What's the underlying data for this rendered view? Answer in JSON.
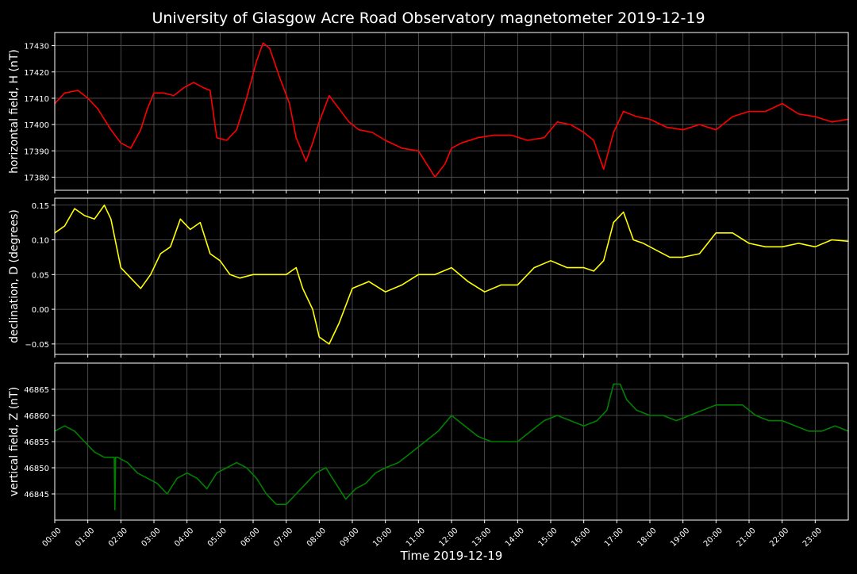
{
  "title": "University of Glasgow Acre Road Observatory magnetometer 2019-12-19",
  "xlabel": "Time 2019-12-19",
  "colors": {
    "background": "#000000",
    "axes": "#ffffff",
    "grid": "#5a5a5a",
    "H": "#ff0000",
    "D": "#ffff00",
    "Z": "#008000"
  },
  "chart_data": [
    {
      "type": "line",
      "ylabel": "horizontal field, H (nT)",
      "series_color": "#ff0000",
      "grid": true,
      "xlim": [
        0,
        24
      ],
      "ylim": [
        17375,
        17435
      ],
      "yticks": [
        17380,
        17390,
        17400,
        17410,
        17420,
        17430
      ],
      "ytick_labels": [
        "17380",
        "17390",
        "17400",
        "17410",
        "17420",
        "17430"
      ],
      "x": [
        0,
        0.3,
        0.7,
        1.0,
        1.3,
        1.7,
        2.0,
        2.3,
        2.6,
        2.8,
        3.0,
        3.3,
        3.6,
        3.9,
        4.2,
        4.5,
        4.7,
        4.9,
        5.2,
        5.5,
        5.8,
        6.1,
        6.3,
        6.5,
        6.8,
        7.1,
        7.3,
        7.6,
        7.8,
        8.0,
        8.3,
        8.6,
        8.9,
        9.2,
        9.6,
        10.0,
        10.5,
        11.0,
        11.5,
        11.8,
        12.0,
        12.3,
        12.8,
        13.3,
        13.8,
        14.3,
        14.8,
        15.2,
        15.6,
        16.0,
        16.3,
        16.6,
        16.9,
        17.2,
        17.6,
        18.0,
        18.5,
        19.0,
        19.5,
        20.0,
        20.5,
        21.0,
        21.5,
        22.0,
        22.5,
        23.0,
        23.5,
        24.0
      ],
      "y": [
        17408,
        17412,
        17413,
        17410,
        17406,
        17398,
        17393,
        17391,
        17398,
        17406,
        17412,
        17412,
        17411,
        17414,
        17416,
        17414,
        17413,
        17395,
        17394,
        17398,
        17410,
        17424,
        17431,
        17429,
        17418,
        17408,
        17395,
        17386,
        17393,
        17401,
        17411,
        17406,
        17401,
        17398,
        17397,
        17394,
        17391,
        17390,
        17380,
        17385,
        17391,
        17393,
        17395,
        17396,
        17396,
        17394,
        17395,
        17401,
        17400,
        17397,
        17394,
        17383,
        17397,
        17405,
        17403,
        17402,
        17399,
        17398,
        17400,
        17398,
        17403,
        17405,
        17405,
        17408,
        17404,
        17403,
        17401,
        17402
      ]
    },
    {
      "type": "line",
      "ylabel": "declination, D (degrees)",
      "series_color": "#ffff00",
      "grid": true,
      "xlim": [
        0,
        24
      ],
      "ylim": [
        -0.065,
        0.16
      ],
      "yticks": [
        -0.05,
        0.0,
        0.05,
        0.1,
        0.15
      ],
      "ytick_labels": [
        "−0.05",
        "0.00",
        "0.05",
        "0.10",
        "0.15"
      ],
      "x": [
        0,
        0.3,
        0.6,
        0.9,
        1.2,
        1.5,
        1.7,
        2.0,
        2.3,
        2.6,
        2.9,
        3.2,
        3.5,
        3.8,
        4.1,
        4.4,
        4.7,
        5.0,
        5.3,
        5.6,
        6.0,
        6.5,
        7.0,
        7.3,
        7.5,
        7.8,
        8.0,
        8.3,
        8.6,
        9.0,
        9.5,
        10.0,
        10.5,
        11.0,
        11.5,
        12.0,
        12.5,
        13.0,
        13.5,
        14.0,
        14.5,
        15.0,
        15.5,
        16.0,
        16.3,
        16.6,
        16.9,
        17.2,
        17.5,
        17.8,
        18.2,
        18.6,
        19.0,
        19.5,
        20.0,
        20.5,
        21.0,
        21.5,
        22.0,
        22.5,
        23.0,
        23.5,
        24.0
      ],
      "y": [
        0.11,
        0.12,
        0.145,
        0.135,
        0.13,
        0.15,
        0.13,
        0.06,
        0.045,
        0.03,
        0.05,
        0.08,
        0.09,
        0.13,
        0.115,
        0.125,
        0.08,
        0.07,
        0.05,
        0.045,
        0.05,
        0.05,
        0.05,
        0.06,
        0.03,
        0.0,
        -0.04,
        -0.05,
        -0.02,
        0.03,
        0.04,
        0.025,
        0.035,
        0.05,
        0.05,
        0.06,
        0.04,
        0.025,
        0.035,
        0.035,
        0.06,
        0.07,
        0.06,
        0.06,
        0.055,
        0.07,
        0.125,
        0.14,
        0.1,
        0.095,
        0.085,
        0.075,
        0.075,
        0.08,
        0.11,
        0.11,
        0.095,
        0.09,
        0.09,
        0.095,
        0.09,
        0.1,
        0.098
      ]
    },
    {
      "type": "line",
      "ylabel": "vertical field, Z (nT)",
      "series_color": "#008000",
      "grid": true,
      "xlim": [
        0,
        24
      ],
      "ylim": [
        46840,
        46870
      ],
      "yticks": [
        46845,
        46850,
        46855,
        46860,
        46865
      ],
      "ytick_labels": [
        "46845",
        "46850",
        "46855",
        "46860",
        "46865"
      ],
      "x": [
        0,
        0.3,
        0.6,
        0.9,
        1.2,
        1.5,
        1.8,
        1.82,
        1.84,
        1.9,
        2.2,
        2.5,
        2.8,
        3.1,
        3.4,
        3.7,
        4.0,
        4.3,
        4.6,
        4.9,
        5.2,
        5.5,
        5.8,
        6.1,
        6.4,
        6.7,
        7.0,
        7.3,
        7.6,
        7.9,
        8.2,
        8.5,
        8.8,
        9.1,
        9.4,
        9.7,
        10.0,
        10.4,
        10.8,
        11.2,
        11.6,
        12.0,
        12.4,
        12.8,
        13.2,
        13.6,
        14.0,
        14.4,
        14.8,
        15.2,
        15.6,
        16.0,
        16.4,
        16.7,
        16.9,
        17.1,
        17.3,
        17.6,
        18.0,
        18.4,
        18.8,
        19.2,
        19.6,
        20.0,
        20.4,
        20.8,
        21.2,
        21.6,
        22.0,
        22.4,
        22.8,
        23.2,
        23.6,
        24.0
      ],
      "y": [
        46857,
        46858,
        46857,
        46855,
        46853,
        46852,
        46852,
        46842,
        46852,
        46852,
        46851,
        46849,
        46848,
        46847,
        46845,
        46848,
        46849,
        46848,
        46846,
        46849,
        46850,
        46851,
        46850,
        46848,
        46845,
        46843,
        46843,
        46845,
        46847,
        46849,
        46850,
        46847,
        46844,
        46846,
        46847,
        46849,
        46850,
        46851,
        46853,
        46855,
        46857,
        46860,
        46858,
        46856,
        46855,
        46855,
        46855,
        46857,
        46859,
        46860,
        46859,
        46858,
        46859,
        46861,
        46866,
        46866,
        46863,
        46861,
        46860,
        46860,
        46859,
        46860,
        46861,
        46862,
        46862,
        46862,
        46860,
        46859,
        46859,
        46858,
        46857,
        46857,
        46858,
        46857
      ]
    }
  ],
  "xticks": [
    0,
    1,
    2,
    3,
    4,
    5,
    6,
    7,
    8,
    9,
    10,
    11,
    12,
    13,
    14,
    15,
    16,
    17,
    18,
    19,
    20,
    21,
    22,
    23
  ],
  "xtick_labels": [
    "00:00",
    "01:00",
    "02:00",
    "03:00",
    "04:00",
    "05:00",
    "06:00",
    "07:00",
    "08:00",
    "09:00",
    "10:00",
    "11:00",
    "12:00",
    "13:00",
    "14:00",
    "15:00",
    "16:00",
    "17:00",
    "18:00",
    "19:00",
    "20:00",
    "21:00",
    "22:00",
    "23:00"
  ]
}
